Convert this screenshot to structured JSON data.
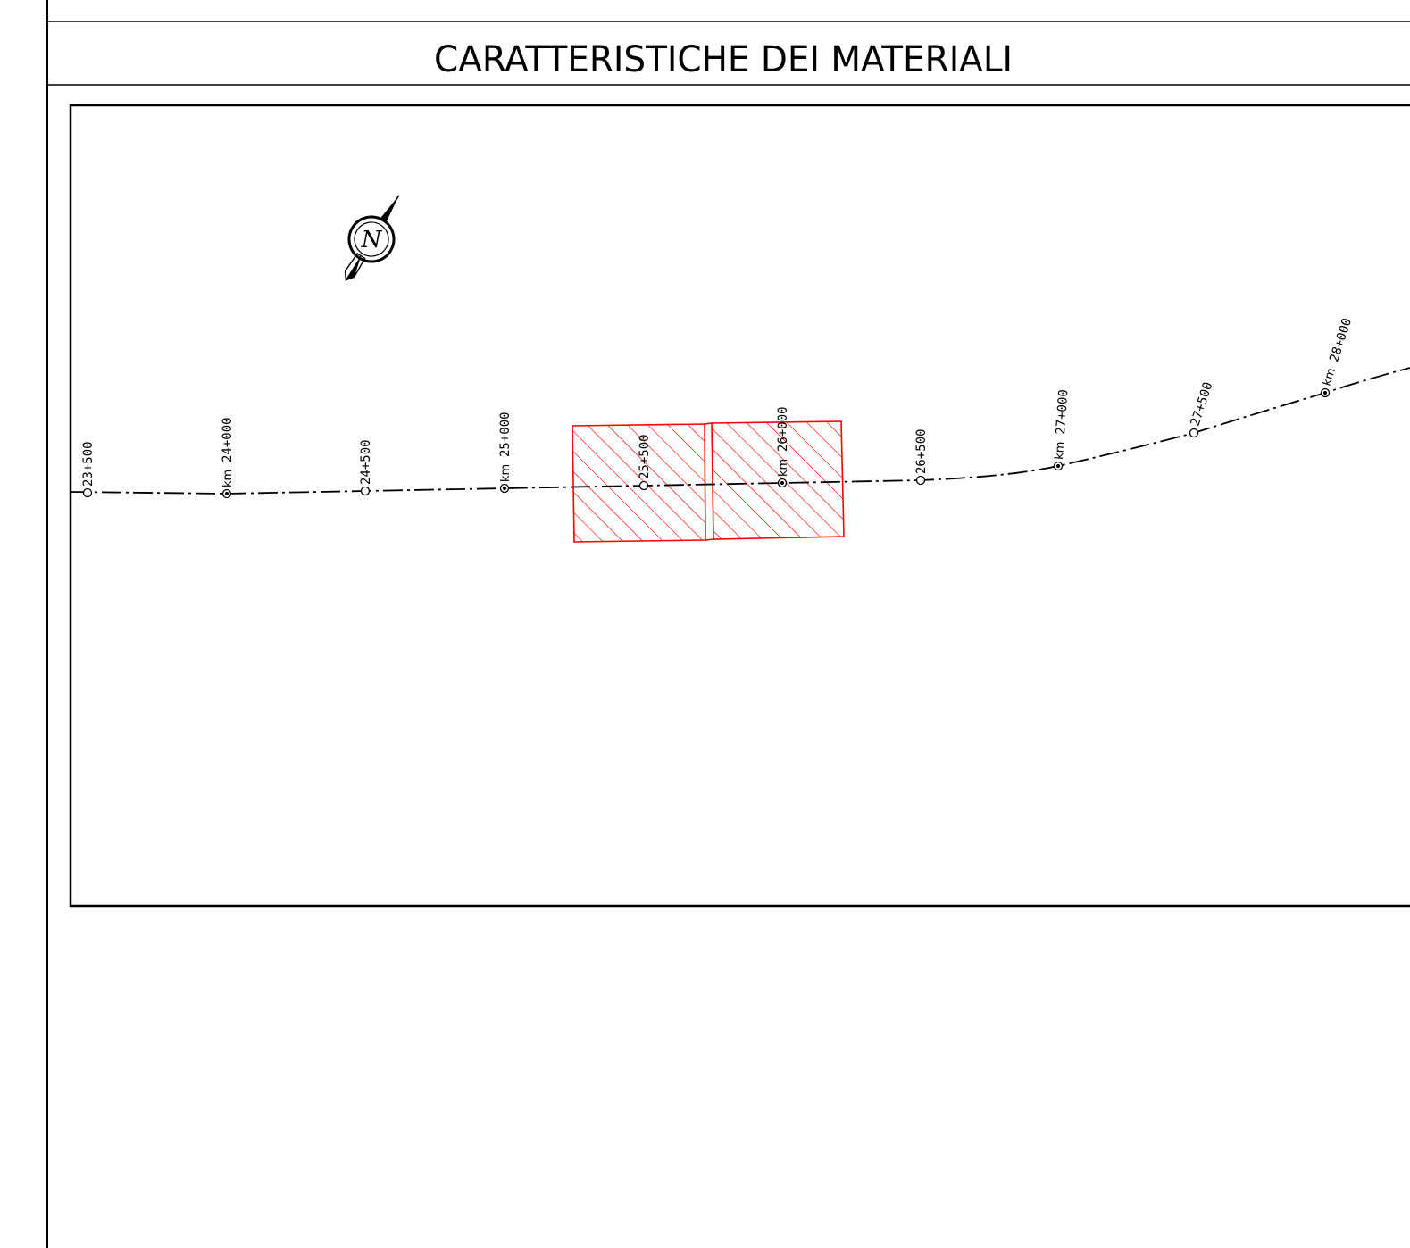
{
  "sheet": {
    "title": "CARATTERISTICHE DEI MATERIALI"
  },
  "north_arrow": {
    "label": "N",
    "icon": "north-arrow-icon"
  },
  "alignment": {
    "stations": [
      {
        "label": "23+500",
        "km_prefix": "",
        "type": "half"
      },
      {
        "label": "24+000",
        "km_prefix": "km",
        "type": "km"
      },
      {
        "label": "24+500",
        "km_prefix": "",
        "type": "half"
      },
      {
        "label": "25+000",
        "km_prefix": "km",
        "type": "km"
      },
      {
        "label": "25+500",
        "km_prefix": "",
        "type": "half"
      },
      {
        "label": "26+000",
        "km_prefix": "km",
        "type": "km"
      },
      {
        "label": "26+500",
        "km_prefix": "",
        "type": "half"
      },
      {
        "label": "27+000",
        "km_prefix": "km",
        "type": "km"
      },
      {
        "label": "27+500",
        "km_prefix": "",
        "type": "half"
      },
      {
        "label": "28+000",
        "km_prefix": "km",
        "type": "km"
      }
    ]
  },
  "colors": {
    "line": "#000000",
    "highlight": "#ff0000"
  }
}
